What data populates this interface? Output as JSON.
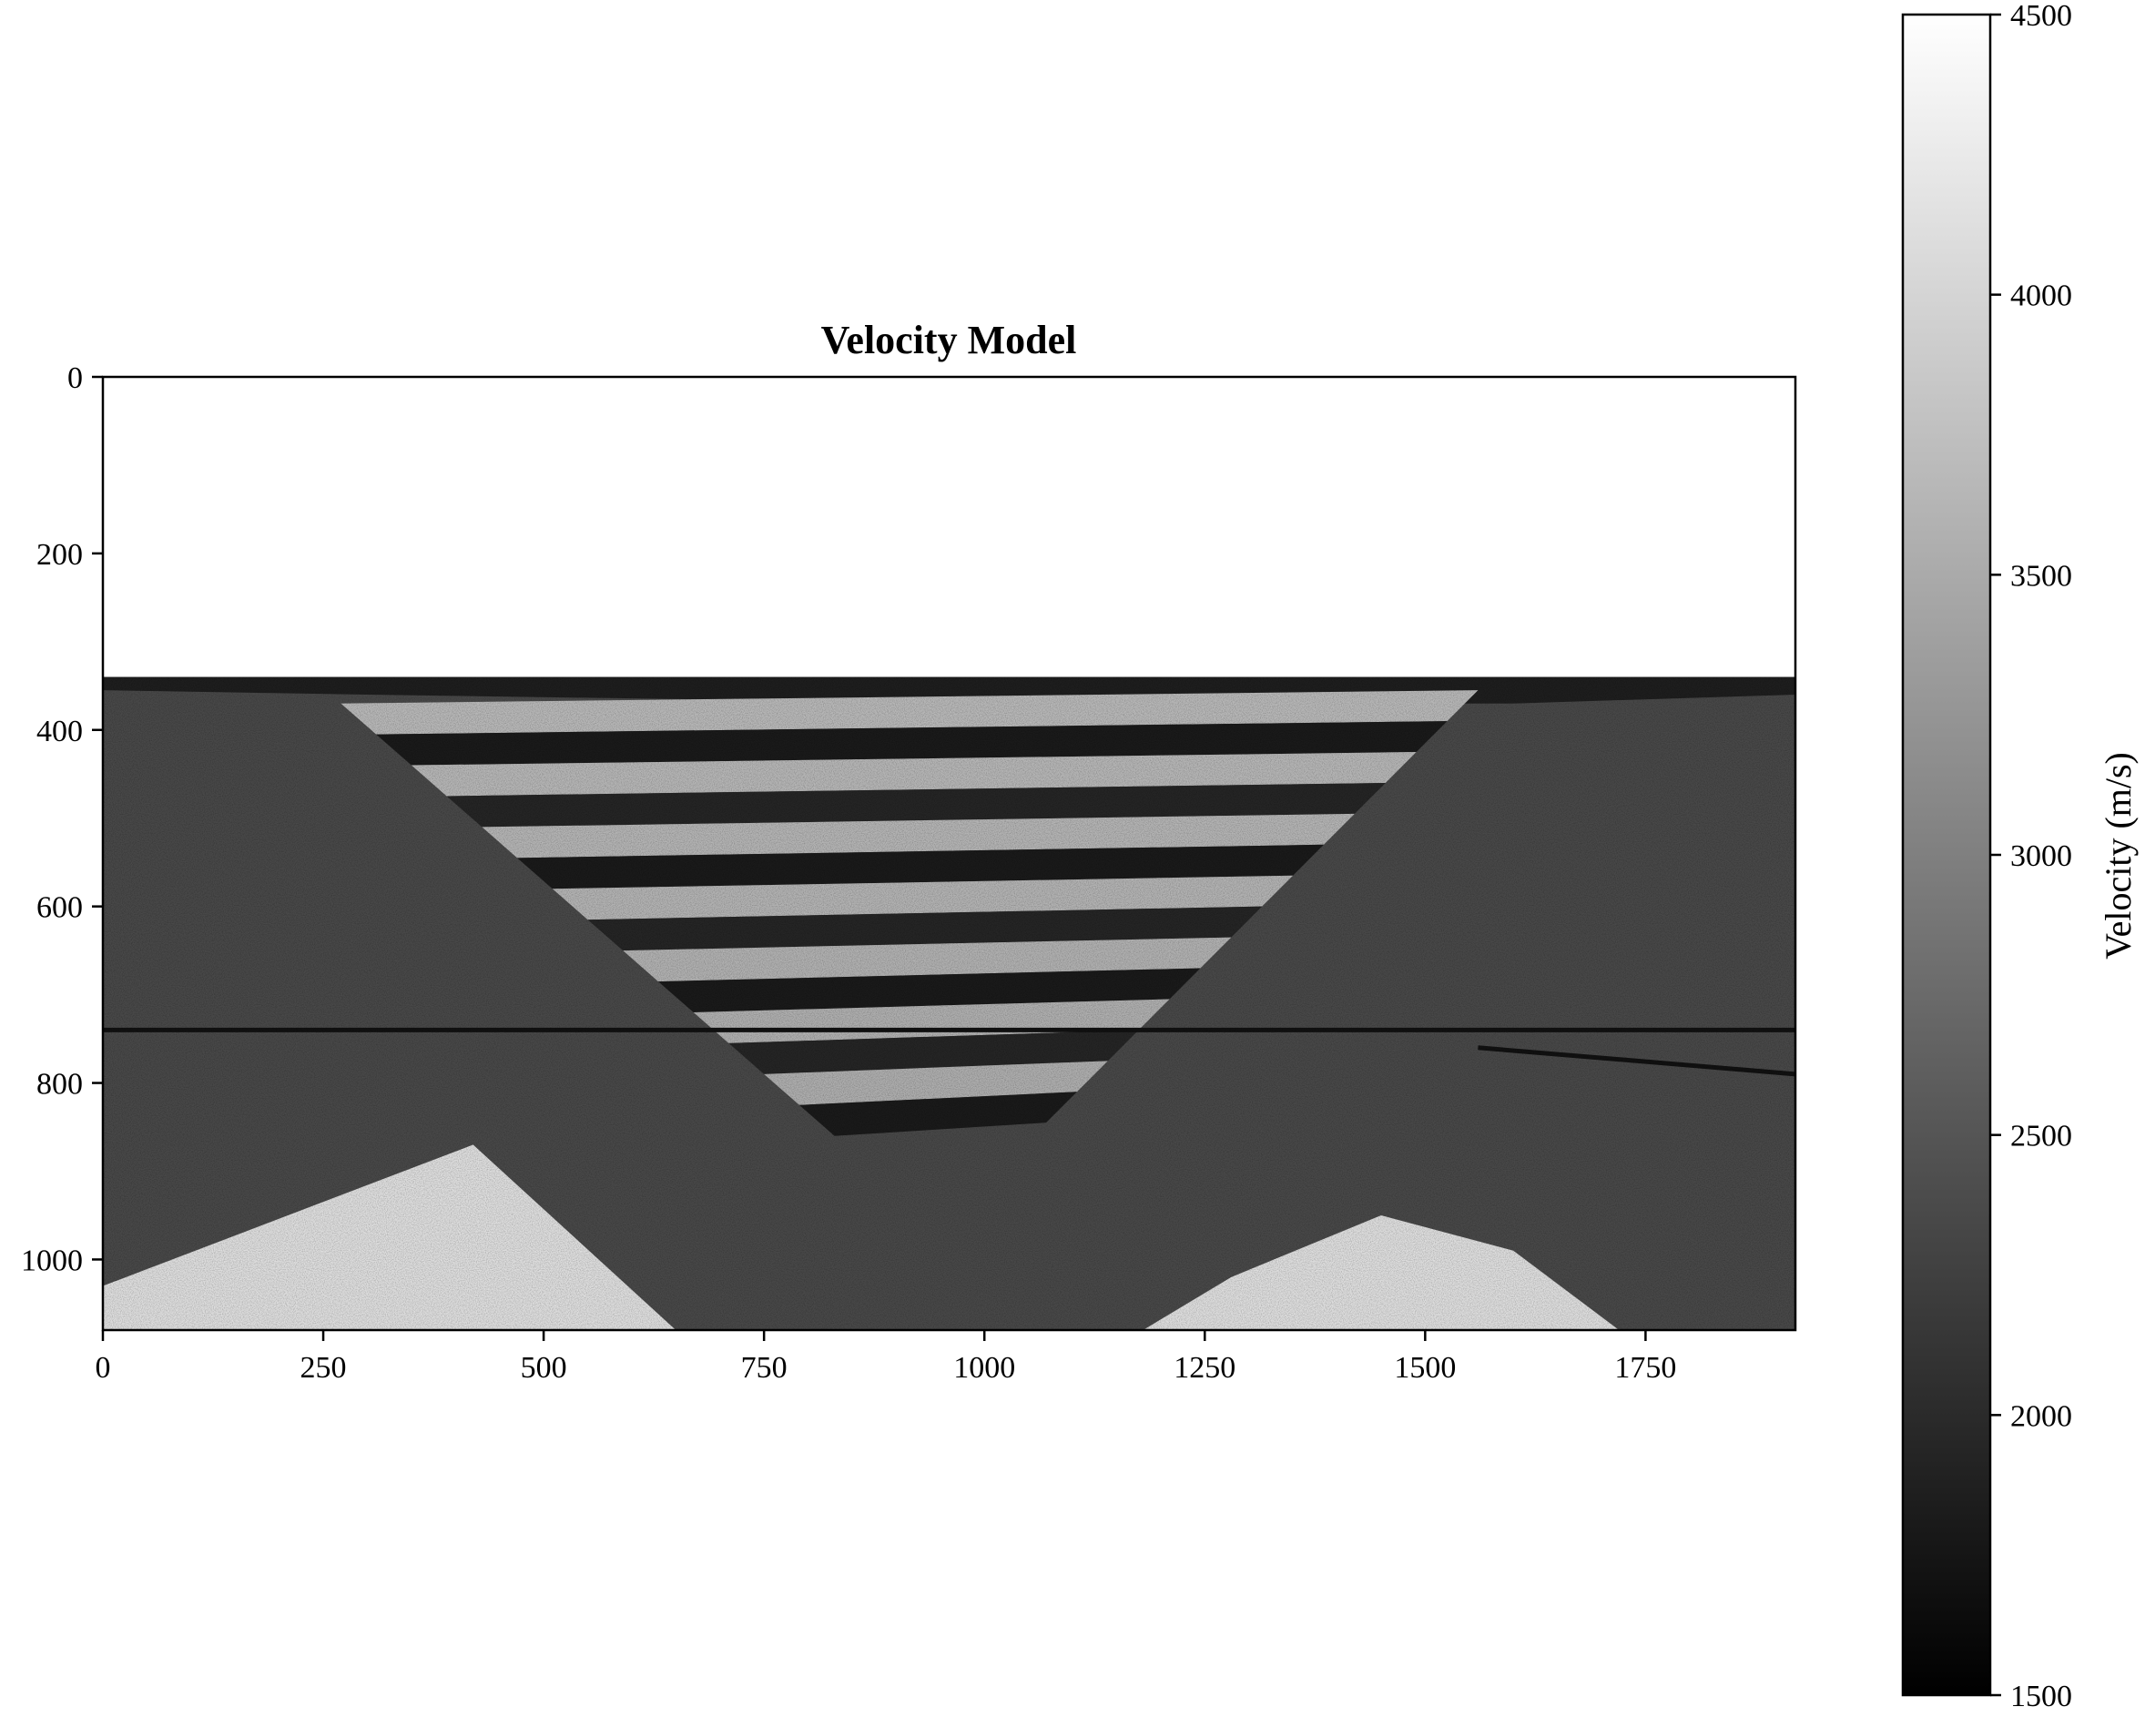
{
  "chart_data": {
    "type": "heatmap",
    "title": "Velocity Model",
    "xlabel": "",
    "ylabel": "",
    "xlim": [
      0,
      1920
    ],
    "ylim": [
      1080,
      0
    ],
    "x_ticks": [
      0,
      250,
      500,
      750,
      1000,
      1250,
      1500,
      1750
    ],
    "y_ticks": [
      0,
      200,
      400,
      600,
      800,
      1000
    ],
    "colormap": "gray",
    "grid": false,
    "colorbar": {
      "label": "Velocity (m/s)",
      "vmin": 1500,
      "vmax": 4500,
      "ticks": [
        1500,
        2000,
        2500,
        3000,
        3500,
        4000,
        4500
      ],
      "position": "right"
    },
    "description_layers": {
      "water_layer": {
        "depth_range": [
          0,
          340
        ],
        "velocity": 4500
      },
      "sediment_top_depth": 340,
      "syncline_center_x": 1000,
      "syncline_bottom_depth": 860,
      "basement_highs": [
        {
          "x_peak": 420,
          "depth_peak": 870,
          "value": 4100
        },
        {
          "x_peak": 1450,
          "depth_peak": 950,
          "value": 4100
        }
      ]
    }
  }
}
